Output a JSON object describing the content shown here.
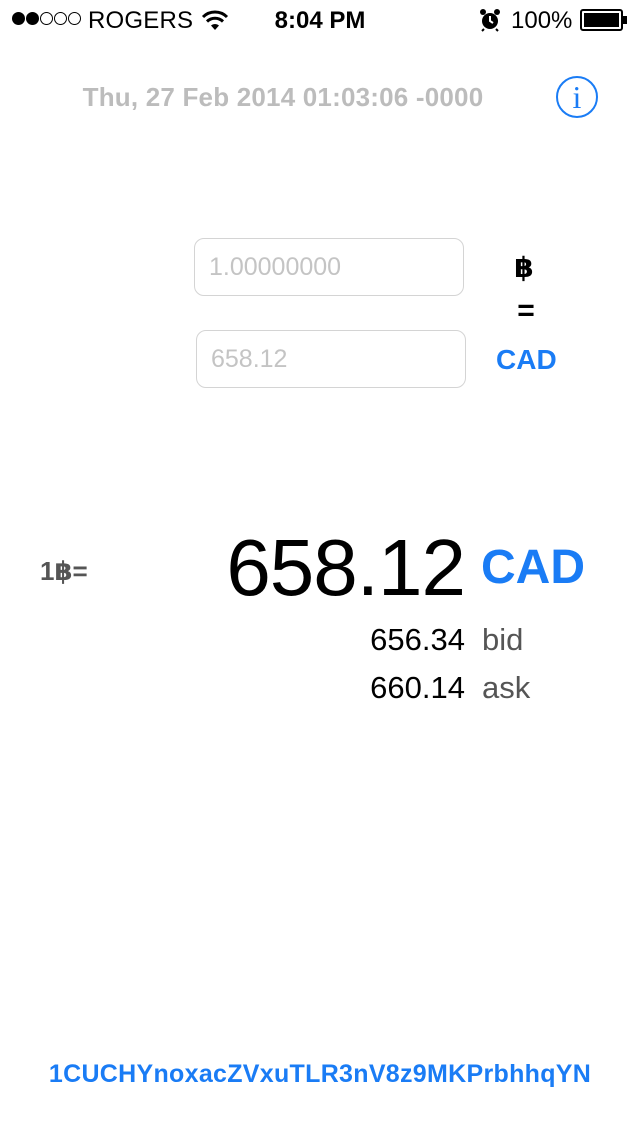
{
  "status_bar": {
    "signal_bars_filled": 2,
    "signal_bars_total": 5,
    "carrier": "ROGERS",
    "time": "8:04 PM",
    "battery_percent": "100%",
    "icons": [
      "wifi-icon",
      "alarm-clock-icon",
      "battery-icon"
    ]
  },
  "header": {
    "timestamp": "Thu, 27 Feb 2014 01:03:06 -0000",
    "info_icon": "i"
  },
  "converter": {
    "btc_field_placeholder": "1.00000000",
    "btc_unit": "฿",
    "equals": "=",
    "fiat_field_placeholder": "658.12",
    "fiat_unit": "CAD"
  },
  "rate": {
    "prefix": "1฿=",
    "value": "658.12",
    "currency": "CAD",
    "bid_value": "656.34",
    "bid_label": "bid",
    "ask_value": "660.14",
    "ask_label": "ask"
  },
  "footer": {
    "donation_address": "1CUCHYnoxacZVxuTLR3nV8z9MKPrbhhqYN"
  },
  "colors": {
    "accent": "#1a7cf5",
    "muted_text": "#bcbcbc",
    "secondary_text": "#555555"
  }
}
